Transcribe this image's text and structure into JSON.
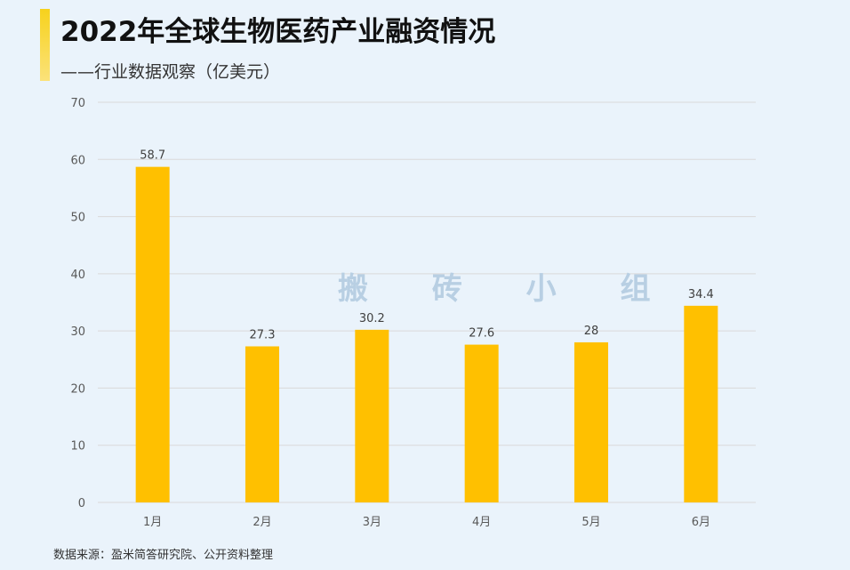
{
  "header": {
    "title": "2022年全球生物医药产业融资情况",
    "subtitle": "——行业数据观察（亿美元）"
  },
  "footer": {
    "source": "数据来源：盈米简答研究院、公开资料整理"
  },
  "watermark": "搬 砖 小 组",
  "colors": {
    "bar": "#ffc000",
    "accent": "#f7d21c",
    "background": "#eaf3fb",
    "grid": "#d9d9d9"
  },
  "chart_data": {
    "type": "bar",
    "categories": [
      "1月",
      "2月",
      "3月",
      "4月",
      "5月",
      "6月"
    ],
    "values": [
      58.7,
      27.3,
      30.2,
      27.6,
      28,
      34.4
    ],
    "value_labels": [
      "58.7",
      "27.3",
      "30.2",
      "27.6",
      "28",
      "34.4"
    ],
    "ylim": [
      0,
      70
    ],
    "yticks": [
      0,
      10,
      20,
      30,
      40,
      50,
      60,
      70
    ],
    "grid": true,
    "legend": "none"
  }
}
